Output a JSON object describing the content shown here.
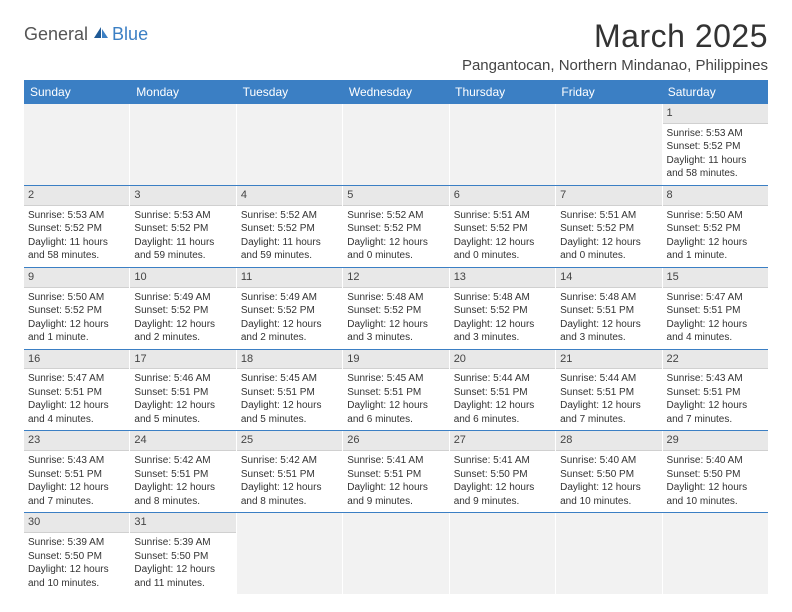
{
  "logo": {
    "general": "General",
    "blue": "Blue"
  },
  "title": "March 2025",
  "location": "Pangantocan, Northern Mindanao, Philippines",
  "colors": {
    "header_bg": "#3b7fc4",
    "header_text": "#ffffff",
    "daynum_bg": "#e8e8e8",
    "row_divider": "#3b7fc4",
    "text": "#333333"
  },
  "weekdays": [
    "Sunday",
    "Monday",
    "Tuesday",
    "Wednesday",
    "Thursday",
    "Friday",
    "Saturday"
  ],
  "weeks": [
    [
      null,
      null,
      null,
      null,
      null,
      null,
      {
        "n": "1",
        "sr": "Sunrise: 5:53 AM",
        "ss": "Sunset: 5:52 PM",
        "dl": "Daylight: 11 hours and 58 minutes."
      }
    ],
    [
      {
        "n": "2",
        "sr": "Sunrise: 5:53 AM",
        "ss": "Sunset: 5:52 PM",
        "dl": "Daylight: 11 hours and 58 minutes."
      },
      {
        "n": "3",
        "sr": "Sunrise: 5:53 AM",
        "ss": "Sunset: 5:52 PM",
        "dl": "Daylight: 11 hours and 59 minutes."
      },
      {
        "n": "4",
        "sr": "Sunrise: 5:52 AM",
        "ss": "Sunset: 5:52 PM",
        "dl": "Daylight: 11 hours and 59 minutes."
      },
      {
        "n": "5",
        "sr": "Sunrise: 5:52 AM",
        "ss": "Sunset: 5:52 PM",
        "dl": "Daylight: 12 hours and 0 minutes."
      },
      {
        "n": "6",
        "sr": "Sunrise: 5:51 AM",
        "ss": "Sunset: 5:52 PM",
        "dl": "Daylight: 12 hours and 0 minutes."
      },
      {
        "n": "7",
        "sr": "Sunrise: 5:51 AM",
        "ss": "Sunset: 5:52 PM",
        "dl": "Daylight: 12 hours and 0 minutes."
      },
      {
        "n": "8",
        "sr": "Sunrise: 5:50 AM",
        "ss": "Sunset: 5:52 PM",
        "dl": "Daylight: 12 hours and 1 minute."
      }
    ],
    [
      {
        "n": "9",
        "sr": "Sunrise: 5:50 AM",
        "ss": "Sunset: 5:52 PM",
        "dl": "Daylight: 12 hours and 1 minute."
      },
      {
        "n": "10",
        "sr": "Sunrise: 5:49 AM",
        "ss": "Sunset: 5:52 PM",
        "dl": "Daylight: 12 hours and 2 minutes."
      },
      {
        "n": "11",
        "sr": "Sunrise: 5:49 AM",
        "ss": "Sunset: 5:52 PM",
        "dl": "Daylight: 12 hours and 2 minutes."
      },
      {
        "n": "12",
        "sr": "Sunrise: 5:48 AM",
        "ss": "Sunset: 5:52 PM",
        "dl": "Daylight: 12 hours and 3 minutes."
      },
      {
        "n": "13",
        "sr": "Sunrise: 5:48 AM",
        "ss": "Sunset: 5:52 PM",
        "dl": "Daylight: 12 hours and 3 minutes."
      },
      {
        "n": "14",
        "sr": "Sunrise: 5:48 AM",
        "ss": "Sunset: 5:51 PM",
        "dl": "Daylight: 12 hours and 3 minutes."
      },
      {
        "n": "15",
        "sr": "Sunrise: 5:47 AM",
        "ss": "Sunset: 5:51 PM",
        "dl": "Daylight: 12 hours and 4 minutes."
      }
    ],
    [
      {
        "n": "16",
        "sr": "Sunrise: 5:47 AM",
        "ss": "Sunset: 5:51 PM",
        "dl": "Daylight: 12 hours and 4 minutes."
      },
      {
        "n": "17",
        "sr": "Sunrise: 5:46 AM",
        "ss": "Sunset: 5:51 PM",
        "dl": "Daylight: 12 hours and 5 minutes."
      },
      {
        "n": "18",
        "sr": "Sunrise: 5:45 AM",
        "ss": "Sunset: 5:51 PM",
        "dl": "Daylight: 12 hours and 5 minutes."
      },
      {
        "n": "19",
        "sr": "Sunrise: 5:45 AM",
        "ss": "Sunset: 5:51 PM",
        "dl": "Daylight: 12 hours and 6 minutes."
      },
      {
        "n": "20",
        "sr": "Sunrise: 5:44 AM",
        "ss": "Sunset: 5:51 PM",
        "dl": "Daylight: 12 hours and 6 minutes."
      },
      {
        "n": "21",
        "sr": "Sunrise: 5:44 AM",
        "ss": "Sunset: 5:51 PM",
        "dl": "Daylight: 12 hours and 7 minutes."
      },
      {
        "n": "22",
        "sr": "Sunrise: 5:43 AM",
        "ss": "Sunset: 5:51 PM",
        "dl": "Daylight: 12 hours and 7 minutes."
      }
    ],
    [
      {
        "n": "23",
        "sr": "Sunrise: 5:43 AM",
        "ss": "Sunset: 5:51 PM",
        "dl": "Daylight: 12 hours and 7 minutes."
      },
      {
        "n": "24",
        "sr": "Sunrise: 5:42 AM",
        "ss": "Sunset: 5:51 PM",
        "dl": "Daylight: 12 hours and 8 minutes."
      },
      {
        "n": "25",
        "sr": "Sunrise: 5:42 AM",
        "ss": "Sunset: 5:51 PM",
        "dl": "Daylight: 12 hours and 8 minutes."
      },
      {
        "n": "26",
        "sr": "Sunrise: 5:41 AM",
        "ss": "Sunset: 5:51 PM",
        "dl": "Daylight: 12 hours and 9 minutes."
      },
      {
        "n": "27",
        "sr": "Sunrise: 5:41 AM",
        "ss": "Sunset: 5:50 PM",
        "dl": "Daylight: 12 hours and 9 minutes."
      },
      {
        "n": "28",
        "sr": "Sunrise: 5:40 AM",
        "ss": "Sunset: 5:50 PM",
        "dl": "Daylight: 12 hours and 10 minutes."
      },
      {
        "n": "29",
        "sr": "Sunrise: 5:40 AM",
        "ss": "Sunset: 5:50 PM",
        "dl": "Daylight: 12 hours and 10 minutes."
      }
    ],
    [
      {
        "n": "30",
        "sr": "Sunrise: 5:39 AM",
        "ss": "Sunset: 5:50 PM",
        "dl": "Daylight: 12 hours and 10 minutes."
      },
      {
        "n": "31",
        "sr": "Sunrise: 5:39 AM",
        "ss": "Sunset: 5:50 PM",
        "dl": "Daylight: 12 hours and 11 minutes."
      },
      null,
      null,
      null,
      null,
      null
    ]
  ]
}
